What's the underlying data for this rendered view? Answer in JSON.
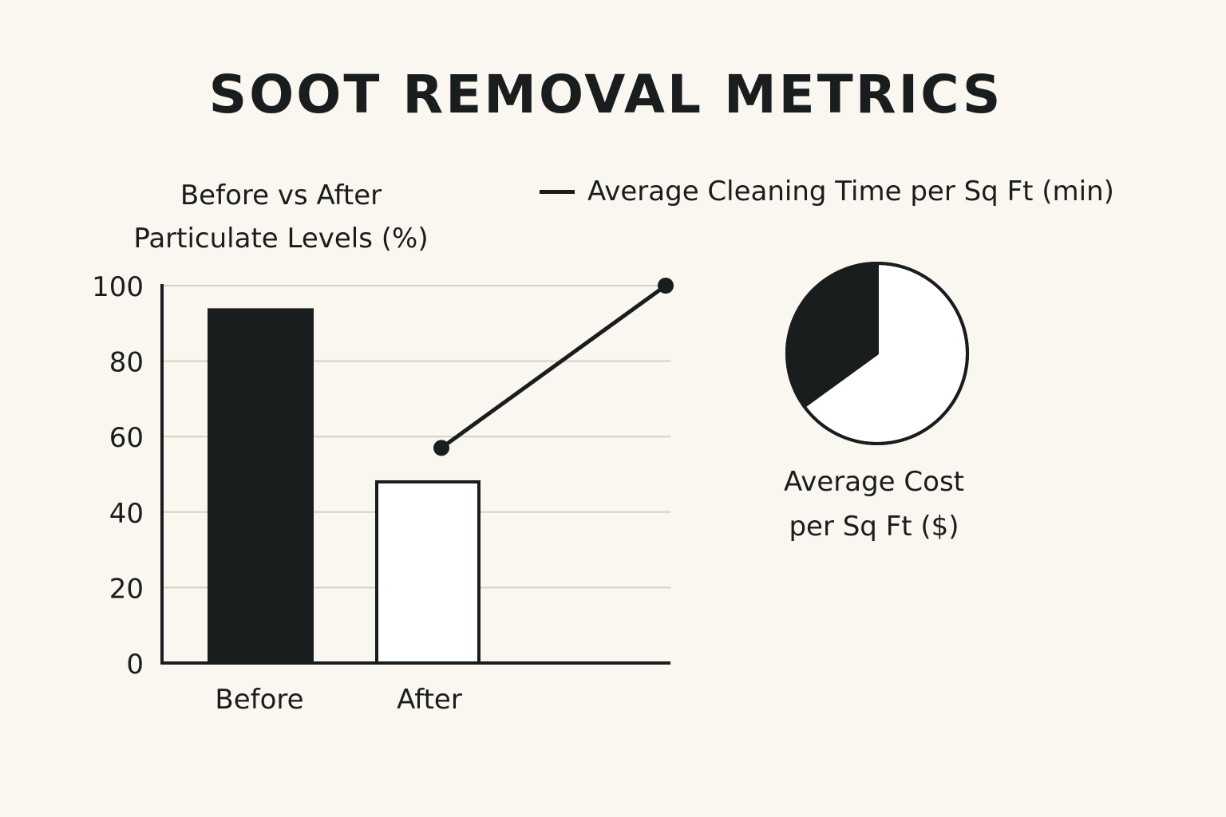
{
  "title": "SOOT REMOVAL METRICS",
  "colors": {
    "background": "#faf6f0",
    "ink": "#1a1d1d",
    "grid": "#d6d2c0",
    "light_fill": "#ffffff"
  },
  "chart_data": [
    {
      "type": "bar",
      "title": [
        "Before vs After",
        "Particulate Levels (%)"
      ],
      "categories": [
        "Before",
        "After"
      ],
      "values": [
        94,
        48
      ],
      "ylim": [
        0,
        100
      ],
      "yticks": [
        "0",
        "20",
        "40",
        "60",
        "80",
        "100"
      ],
      "grid": true
    },
    {
      "type": "line",
      "legend": "Average Cleaning Time per Sq Ft (min)",
      "legend_placement": "top",
      "values": [
        57,
        100
      ]
    },
    {
      "type": "pie",
      "label": [
        "Average Cost",
        "per Sq Ft ($)"
      ],
      "slices": [
        {
          "value": 35,
          "color": "#1a1d1d"
        },
        {
          "value": 65,
          "color": "#ffffff"
        }
      ]
    }
  ]
}
